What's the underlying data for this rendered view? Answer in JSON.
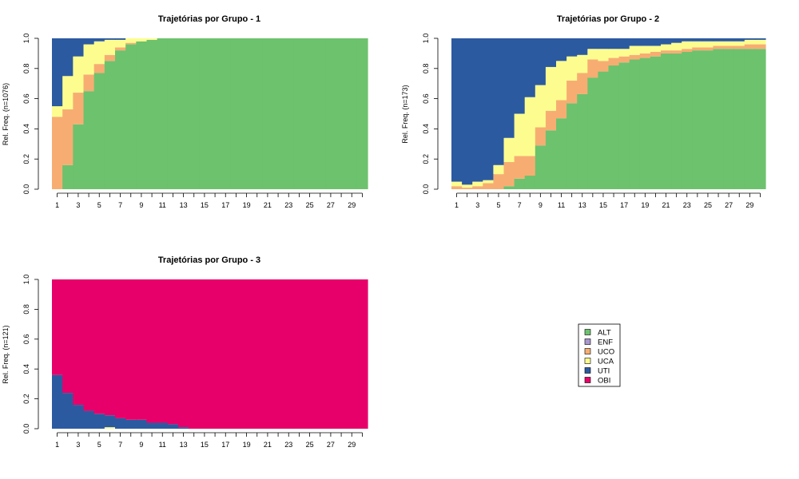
{
  "colors": {
    "ALT": "#6DC26D",
    "ENF": "#A896CC",
    "UCO": "#F7AD72",
    "UCA": "#FDFD8F",
    "UTI": "#2C5AA0",
    "OBI": "#E8006A"
  },
  "legend": {
    "position": "center-right",
    "entries": [
      "ALT",
      "ENF",
      "UCO",
      "UCA",
      "UTI",
      "OBI"
    ]
  },
  "chart_data": [
    {
      "type": "area",
      "subtype": "state-distribution-plot",
      "title": "Trajetórias por Grupo -  1",
      "ylabel": "Rel. Freq. (n=1076)",
      "ylim": [
        0,
        1
      ],
      "yticks": [
        "0.0",
        "0.2",
        "0.4",
        "0.6",
        "0.8",
        "1.0"
      ],
      "xticks": [
        "1",
        "3",
        "5",
        "7",
        "9",
        "11",
        "13",
        "15",
        "17",
        "19",
        "21",
        "23",
        "25",
        "27",
        "29"
      ],
      "x": [
        1,
        2,
        3,
        4,
        5,
        6,
        7,
        8,
        9,
        10,
        11,
        12,
        13,
        14,
        15,
        16,
        17,
        18,
        19,
        20,
        21,
        22,
        23,
        24,
        25,
        26,
        27,
        28,
        29,
        30
      ],
      "stack_order": [
        "ALT",
        "ENF",
        "UCO",
        "UCA",
        "UTI",
        "OBI"
      ],
      "series": [
        {
          "name": "ALT",
          "values": [
            0.0,
            0.16,
            0.43,
            0.65,
            0.77,
            0.85,
            0.92,
            0.96,
            0.98,
            0.99,
            1.0,
            1.0,
            1.0,
            1.0,
            1.0,
            1.0,
            1.0,
            1.0,
            1.0,
            1.0,
            1.0,
            1.0,
            1.0,
            1.0,
            1.0,
            1.0,
            1.0,
            1.0,
            1.0,
            1.0
          ]
        },
        {
          "name": "ENF",
          "values": [
            0,
            0,
            0,
            0,
            0,
            0,
            0,
            0,
            0,
            0,
            0,
            0,
            0,
            0,
            0,
            0,
            0,
            0,
            0,
            0,
            0,
            0,
            0,
            0,
            0,
            0,
            0,
            0,
            0,
            0
          ]
        },
        {
          "name": "UCO",
          "values": [
            0.48,
            0.37,
            0.21,
            0.11,
            0.06,
            0.04,
            0.02,
            0.01,
            0.0,
            0,
            0,
            0,
            0,
            0,
            0,
            0,
            0,
            0,
            0,
            0,
            0,
            0,
            0,
            0,
            0,
            0,
            0,
            0,
            0,
            0
          ]
        },
        {
          "name": "UCA",
          "values": [
            0.07,
            0.22,
            0.24,
            0.2,
            0.15,
            0.1,
            0.05,
            0.03,
            0.02,
            0.01,
            0,
            0,
            0,
            0,
            0,
            0,
            0,
            0,
            0,
            0,
            0,
            0,
            0,
            0,
            0,
            0,
            0,
            0,
            0,
            0
          ]
        },
        {
          "name": "UTI",
          "values": [
            0.45,
            0.25,
            0.12,
            0.04,
            0.02,
            0.01,
            0.01,
            0.0,
            0.0,
            0,
            0,
            0,
            0,
            0,
            0,
            0,
            0,
            0,
            0,
            0,
            0,
            0,
            0,
            0,
            0,
            0,
            0,
            0,
            0,
            0
          ]
        },
        {
          "name": "OBI",
          "values": [
            0,
            0,
            0,
            0,
            0,
            0,
            0,
            0,
            0,
            0,
            0,
            0,
            0,
            0,
            0,
            0,
            0,
            0,
            0,
            0,
            0,
            0,
            0,
            0,
            0,
            0,
            0,
            0,
            0,
            0
          ]
        }
      ]
    },
    {
      "type": "area",
      "subtype": "state-distribution-plot",
      "title": "Trajetórias por Grupo -  2",
      "ylabel": "Rel. Freq. (n=173)",
      "ylim": [
        0,
        1
      ],
      "yticks": [
        "0.0",
        "0.2",
        "0.4",
        "0.6",
        "0.8",
        "1.0"
      ],
      "xticks": [
        "1",
        "3",
        "5",
        "7",
        "9",
        "11",
        "13",
        "15",
        "17",
        "19",
        "21",
        "23",
        "25",
        "27",
        "29"
      ],
      "x": [
        1,
        2,
        3,
        4,
        5,
        6,
        7,
        8,
        9,
        10,
        11,
        12,
        13,
        14,
        15,
        16,
        17,
        18,
        19,
        20,
        21,
        22,
        23,
        24,
        25,
        26,
        27,
        28,
        29,
        30
      ],
      "stack_order": [
        "ALT",
        "ENF",
        "UCO",
        "UCA",
        "UTI",
        "OBI"
      ],
      "series": [
        {
          "name": "ALT",
          "values": [
            0.0,
            0.0,
            0.0,
            0.0,
            0.0,
            0.02,
            0.07,
            0.09,
            0.29,
            0.39,
            0.47,
            0.57,
            0.63,
            0.74,
            0.78,
            0.82,
            0.84,
            0.86,
            0.87,
            0.88,
            0.9,
            0.9,
            0.91,
            0.92,
            0.92,
            0.93,
            0.93,
            0.93,
            0.93,
            0.93
          ]
        },
        {
          "name": "ENF",
          "values": [
            0,
            0,
            0,
            0,
            0,
            0,
            0,
            0,
            0,
            0,
            0,
            0,
            0,
            0,
            0,
            0,
            0,
            0,
            0,
            0,
            0,
            0,
            0,
            0,
            0,
            0,
            0,
            0,
            0,
            0
          ]
        },
        {
          "name": "UCO",
          "values": [
            0.02,
            0.01,
            0.02,
            0.04,
            0.1,
            0.16,
            0.15,
            0.13,
            0.12,
            0.13,
            0.12,
            0.15,
            0.14,
            0.12,
            0.07,
            0.05,
            0.04,
            0.03,
            0.03,
            0.03,
            0.02,
            0.02,
            0.02,
            0.02,
            0.02,
            0.02,
            0.02,
            0.02,
            0.03,
            0.03
          ]
        },
        {
          "name": "UCA",
          "values": [
            0.03,
            0.02,
            0.03,
            0.02,
            0.06,
            0.16,
            0.28,
            0.39,
            0.28,
            0.29,
            0.26,
            0.16,
            0.12,
            0.07,
            0.08,
            0.06,
            0.05,
            0.06,
            0.05,
            0.04,
            0.04,
            0.05,
            0.05,
            0.04,
            0.04,
            0.03,
            0.03,
            0.03,
            0.03,
            0.03
          ]
        },
        {
          "name": "UTI",
          "values": [
            0.95,
            0.97,
            0.95,
            0.94,
            0.84,
            0.66,
            0.5,
            0.39,
            0.31,
            0.19,
            0.15,
            0.12,
            0.11,
            0.07,
            0.07,
            0.07,
            0.07,
            0.05,
            0.05,
            0.05,
            0.04,
            0.03,
            0.02,
            0.02,
            0.02,
            0.02,
            0.02,
            0.02,
            0.01,
            0.01
          ]
        },
        {
          "name": "OBI",
          "values": [
            0,
            0,
            0,
            0,
            0,
            0,
            0,
            0,
            0,
            0,
            0,
            0,
            0,
            0,
            0,
            0,
            0,
            0,
            0,
            0,
            0,
            0,
            0,
            0,
            0,
            0,
            0,
            0,
            0,
            0
          ]
        }
      ]
    },
    {
      "type": "area",
      "subtype": "state-distribution-plot",
      "title": "Trajetórias por Grupo -  3",
      "ylabel": "Rel. Freq. (n=121)",
      "ylim": [
        0,
        1
      ],
      "yticks": [
        "0.0",
        "0.2",
        "0.4",
        "0.6",
        "0.8",
        "1.0"
      ],
      "xticks": [
        "1",
        "3",
        "5",
        "7",
        "9",
        "11",
        "13",
        "15",
        "17",
        "19",
        "21",
        "23",
        "25",
        "27",
        "29"
      ],
      "x": [
        1,
        2,
        3,
        4,
        5,
        6,
        7,
        8,
        9,
        10,
        11,
        12,
        13,
        14,
        15,
        16,
        17,
        18,
        19,
        20,
        21,
        22,
        23,
        24,
        25,
        26,
        27,
        28,
        29,
        30
      ],
      "stack_order": [
        "ALT",
        "ENF",
        "UCO",
        "UCA",
        "UTI",
        "OBI"
      ],
      "series": [
        {
          "name": "ALT",
          "values": [
            0,
            0,
            0,
            0,
            0,
            0,
            0,
            0,
            0,
            0,
            0,
            0,
            0,
            0,
            0,
            0,
            0,
            0,
            0,
            0,
            0,
            0,
            0,
            0,
            0,
            0,
            0,
            0,
            0,
            0
          ]
        },
        {
          "name": "ENF",
          "values": [
            0,
            0,
            0,
            0,
            0,
            0,
            0,
            0,
            0,
            0,
            0,
            0,
            0,
            0,
            0,
            0,
            0,
            0,
            0,
            0,
            0,
            0,
            0,
            0,
            0,
            0,
            0,
            0,
            0,
            0
          ]
        },
        {
          "name": "UCO",
          "values": [
            0,
            0,
            0,
            0,
            0,
            0,
            0,
            0,
            0,
            0,
            0,
            0,
            0,
            0,
            0,
            0,
            0,
            0,
            0,
            0,
            0,
            0,
            0,
            0,
            0,
            0,
            0,
            0,
            0,
            0
          ]
        },
        {
          "name": "UCA",
          "values": [
            0.0,
            0.0,
            0.0,
            0.0,
            0.0,
            0.01,
            0.0,
            0.0,
            0.0,
            0.0,
            0,
            0,
            0,
            0,
            0,
            0,
            0,
            0,
            0,
            0,
            0,
            0,
            0,
            0,
            0,
            0,
            0,
            0,
            0,
            0
          ]
        },
        {
          "name": "UTI",
          "values": [
            0.36,
            0.24,
            0.16,
            0.12,
            0.1,
            0.08,
            0.07,
            0.06,
            0.06,
            0.04,
            0.04,
            0.03,
            0.01,
            0.0,
            0,
            0,
            0,
            0,
            0,
            0,
            0,
            0,
            0,
            0,
            0,
            0,
            0,
            0,
            0,
            0
          ]
        },
        {
          "name": "OBI",
          "values": [
            0.64,
            0.76,
            0.84,
            0.88,
            0.9,
            0.91,
            0.93,
            0.94,
            0.94,
            0.96,
            0.96,
            0.97,
            0.99,
            1.0,
            1.0,
            1.0,
            1.0,
            1.0,
            1.0,
            1.0,
            1.0,
            1.0,
            1.0,
            1.0,
            1.0,
            1.0,
            1.0,
            1.0,
            1.0,
            1.0
          ]
        }
      ]
    }
  ]
}
